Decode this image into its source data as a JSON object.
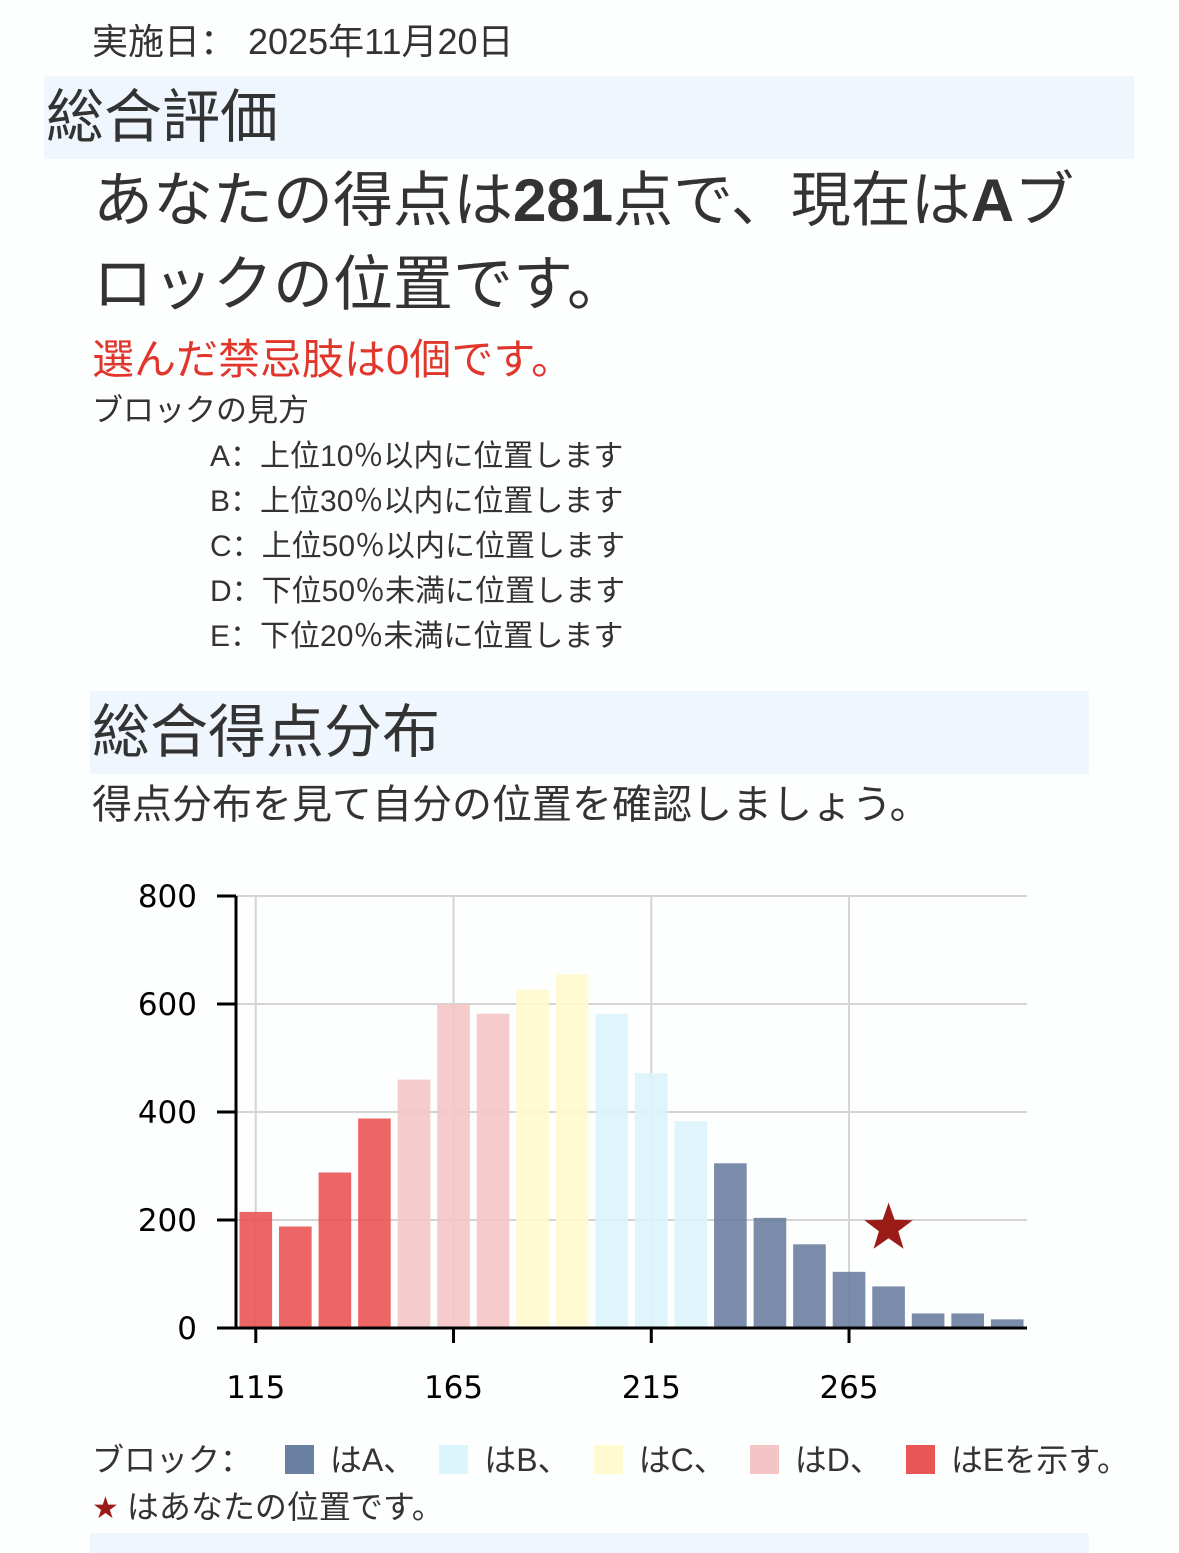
{
  "header": {
    "date_label": "実施日：",
    "date_value": "2025年11月20日"
  },
  "overall": {
    "title": "総合評価",
    "sentence": {
      "part1": "あなたの得点は",
      "score": "281",
      "part2": "点で、現在は",
      "block": "A",
      "part3": "ブロックの位置です。"
    },
    "forbidden_text": "選んだ禁忌肢は0個です。",
    "guide_title": "ブロックの見方",
    "guide_items": [
      "A：上位10％以内に位置します",
      "B：上位30％以内に位置します",
      "C：上位50％以内に位置します",
      "D：下位50％未満に位置します",
      "E：下位20％未満に位置します"
    ]
  },
  "distribution": {
    "title": "総合得点分布",
    "subtitle": "得点分布を見て自分の位置を確認しましょう。",
    "legend": {
      "prefix": "ブロック：",
      "items": [
        {
          "label": "はA、",
          "color": "#6b7fa0"
        },
        {
          "label": "はB、",
          "color": "#dcf4fb"
        },
        {
          "label": "はC、",
          "color": "#fffacf"
        },
        {
          "label": "はD、",
          "color": "#f5c5c6"
        },
        {
          "label": "はEを示す。",
          "color": "#ea5555"
        }
      ],
      "star_symbol": "★",
      "star_note": "はあなたの位置です。"
    }
  },
  "colors": {
    "band": "#f0f6fd",
    "text": "#333333",
    "alert": "#e0362c",
    "star": "#9b1c17",
    "grid": "#d4d4d4"
  },
  "chart_data": {
    "type": "bar",
    "title": "総合得点分布",
    "xlabel": "",
    "ylabel": "",
    "x": [
      115,
      125,
      135,
      145,
      155,
      165,
      175,
      185,
      195,
      205,
      215,
      225,
      235,
      245,
      255,
      265,
      275,
      285,
      295,
      305
    ],
    "values": [
      215,
      188,
      288,
      388,
      460,
      600,
      582,
      627,
      655,
      582,
      472,
      383,
      305,
      204,
      155,
      104,
      77,
      27,
      27,
      16
    ],
    "blocks": [
      "E",
      "E",
      "E",
      "E",
      "D",
      "D",
      "D",
      "C",
      "C",
      "B",
      "B",
      "B",
      "A",
      "A",
      "A",
      "A",
      "A",
      "A",
      "A",
      "A"
    ],
    "block_colors": {
      "A": "#6b7fa0",
      "B": "#dcf4fb",
      "C": "#fffacf",
      "D": "#f5c5c6",
      "E": "#ea5555"
    },
    "xticks": [
      115,
      165,
      215,
      265
    ],
    "yticks": [
      0,
      200,
      400,
      600,
      800
    ],
    "xlim": [
      110,
      310
    ],
    "ylim": [
      0,
      800
    ],
    "grid": true,
    "legend_position": "below",
    "marker": {
      "symbol": "star",
      "x": 275,
      "y": 185,
      "label": "あなたの位置",
      "score": 281,
      "color": "#9b1c17"
    }
  }
}
